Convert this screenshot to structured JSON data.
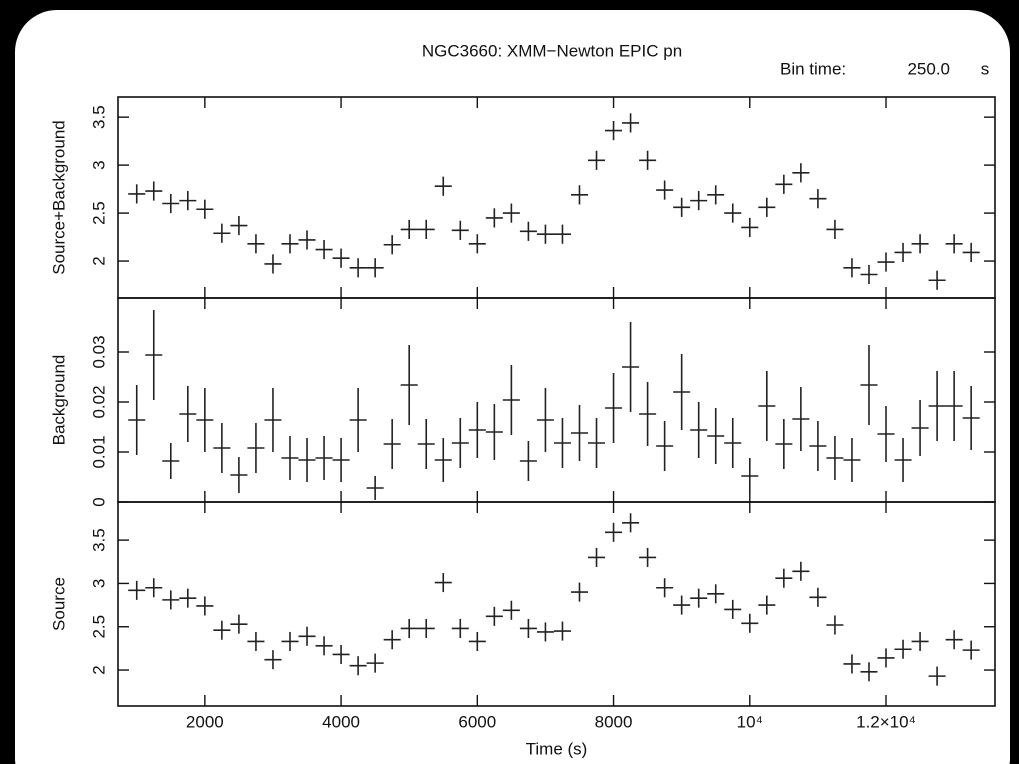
{
  "chart_data": [
    {
      "type": "errorbar",
      "title": "NGC3660: XMM−Newton EPIC pn",
      "bin_time_label": "Bin time:",
      "bin_time": "250.0",
      "bin_time_unit": "s",
      "ylabel": "Source+Background",
      "x": [
        1000,
        1250,
        1500,
        1750,
        2000,
        2250,
        2500,
        2750,
        3000,
        3250,
        3500,
        3750,
        4000,
        4250,
        4500,
        4750,
        5000,
        5250,
        5500,
        5750,
        6000,
        6250,
        6500,
        6750,
        7000,
        7250,
        7500,
        7750,
        8000,
        8250,
        8500,
        8750,
        9000,
        9250,
        9500,
        9750,
        10000,
        10250,
        10500,
        10750,
        11000,
        11250,
        11500,
        11750,
        12000,
        12250,
        12500,
        12750,
        13000,
        13250
      ],
      "values": [
        2.7,
        2.73,
        2.6,
        2.63,
        2.54,
        2.29,
        2.37,
        2.18,
        1.97,
        2.18,
        2.22,
        2.12,
        2.03,
        1.93,
        1.93,
        2.17,
        2.33,
        2.33,
        2.78,
        2.32,
        2.18,
        2.45,
        2.5,
        2.31,
        2.28,
        2.28,
        2.69,
        3.05,
        3.36,
        3.44,
        3.05,
        2.74,
        2.56,
        2.63,
        2.69,
        2.5,
        2.35,
        2.56,
        2.8,
        2.92,
        2.65,
        2.33,
        1.93,
        1.86,
        1.99,
        2.09,
        2.18,
        1.8,
        2.18,
        2.09
      ],
      "yerr": 0.1,
      "xerr": 125,
      "color": "#222222",
      "xlim": [
        725,
        13600
      ],
      "xticks": [
        2000,
        4000,
        6000,
        8000,
        10000,
        12000
      ],
      "xtick_labels": false,
      "ylim": [
        1.615,
        3.71
      ],
      "yticks": [
        2,
        2.5,
        3,
        3.5
      ]
    },
    {
      "type": "errorbar",
      "ylabel": "Background",
      "x": [
        1000,
        1250,
        1500,
        1750,
        2000,
        2250,
        2500,
        2750,
        3000,
        3250,
        3500,
        3750,
        4000,
        4250,
        4500,
        4750,
        5000,
        5250,
        5500,
        5750,
        6000,
        6250,
        6500,
        6750,
        7000,
        7250,
        7500,
        7750,
        8000,
        8250,
        8500,
        8750,
        9000,
        9250,
        9500,
        9750,
        10000,
        10250,
        10500,
        10750,
        11000,
        11250,
        11500,
        11750,
        12000,
        12250,
        12500,
        12750,
        13000,
        13250
      ],
      "values": [
        0.0164,
        0.0294,
        0.0082,
        0.0176,
        0.0164,
        0.0108,
        0.0054,
        0.0108,
        0.0164,
        0.0088,
        0.0084,
        0.0088,
        0.0084,
        0.0164,
        0.0028,
        0.0116,
        0.0234,
        0.0116,
        0.0084,
        0.0118,
        0.0144,
        0.014,
        0.0204,
        0.0082,
        0.0164,
        0.0118,
        0.0138,
        0.0118,
        0.0188,
        0.027,
        0.0176,
        0.0112,
        0.022,
        0.0144,
        0.0132,
        0.0118,
        0.0052,
        0.0192,
        0.0116,
        0.0166,
        0.0112,
        0.0088,
        0.0084,
        0.0234,
        0.0136,
        0.0084,
        0.0148,
        0.0192,
        0.0192,
        0.0168
      ],
      "yerr": [
        0.007,
        0.009,
        0.0036,
        0.0056,
        0.0064,
        0.005,
        0.0036,
        0.005,
        0.0064,
        0.0044,
        0.0044,
        0.0044,
        0.0044,
        0.0064,
        0.0024,
        0.005,
        0.008,
        0.005,
        0.0044,
        0.005,
        0.0056,
        0.0056,
        0.007,
        0.004,
        0.0064,
        0.005,
        0.0056,
        0.005,
        0.007,
        0.009,
        0.0064,
        0.005,
        0.0076,
        0.0056,
        0.0056,
        0.005,
        0.0036,
        0.007,
        0.005,
        0.0064,
        0.005,
        0.0044,
        0.0044,
        0.008,
        0.0056,
        0.0044,
        0.0056,
        0.007,
        0.007,
        0.0064
      ],
      "xerr": 125,
      "color": "#222222",
      "xlim": [
        725,
        13600
      ],
      "xticks": [
        2000,
        4000,
        6000,
        8000,
        10000,
        12000
      ],
      "xtick_labels": false,
      "ylim": [
        0,
        0.0408
      ],
      "yticks": [
        0,
        0.01,
        0.02,
        0.03
      ]
    },
    {
      "type": "errorbar",
      "ylabel": "Source",
      "xlabel": "Time (s)",
      "x": [
        1000,
        1250,
        1500,
        1750,
        2000,
        2250,
        2500,
        2750,
        3000,
        3250,
        3500,
        3750,
        4000,
        4250,
        4500,
        4750,
        5000,
        5250,
        5500,
        5750,
        6000,
        6250,
        6500,
        6750,
        7000,
        7250,
        7500,
        7750,
        8000,
        8250,
        8500,
        8750,
        9000,
        9250,
        9500,
        9750,
        10000,
        10250,
        10500,
        10750,
        11000,
        11250,
        11500,
        11750,
        12000,
        12250,
        12500,
        12750,
        13000,
        13250
      ],
      "values": [
        2.92,
        2.95,
        2.81,
        2.83,
        2.74,
        2.46,
        2.53,
        2.33,
        2.12,
        2.33,
        2.39,
        2.28,
        2.18,
        2.05,
        2.08,
        2.35,
        2.48,
        2.48,
        3.01,
        2.48,
        2.33,
        2.62,
        2.69,
        2.48,
        2.44,
        2.45,
        2.9,
        3.3,
        3.59,
        3.7,
        3.3,
        2.95,
        2.75,
        2.83,
        2.88,
        2.7,
        2.54,
        2.75,
        3.06,
        3.14,
        2.84,
        2.52,
        2.07,
        1.98,
        2.14,
        2.24,
        2.33,
        1.93,
        2.35,
        2.23
      ],
      "yerr": 0.11,
      "xerr": 125,
      "color": "#222222",
      "xlim": [
        725,
        13600
      ],
      "xticks": [
        2000,
        4000,
        6000,
        8000,
        {
          "value": 10000,
          "label": "10⁴"
        },
        {
          "value": 12000,
          "label": "1.2×10⁴"
        }
      ],
      "xtick_labels": true,
      "ylim": [
        1.585,
        3.94
      ],
      "yticks": [
        2,
        2.5,
        3,
        3.5
      ]
    }
  ]
}
